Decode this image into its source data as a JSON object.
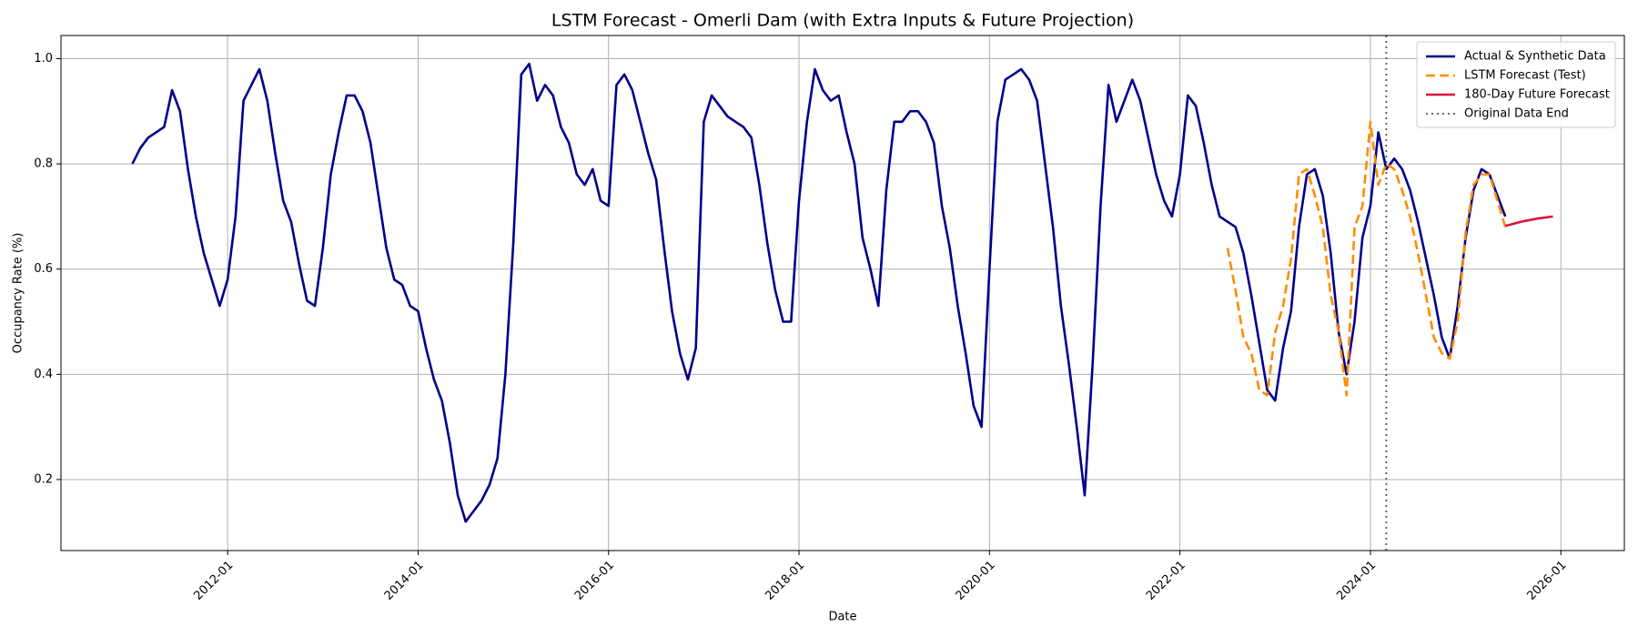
{
  "chart_data": {
    "type": "line",
    "title": "LSTM Forecast - Omerli Dam (with Extra Inputs & Future Projection)",
    "x_label": "Date",
    "y_label": "Occupancy Rate (%)",
    "xlim": [
      "2010-04",
      "2026-09"
    ],
    "xticks": [
      "2012-01",
      "2014-01",
      "2016-01",
      "2018-01",
      "2020-01",
      "2022-01",
      "2024-01",
      "2026-01"
    ],
    "ylim": [
      0.065,
      1.044
    ],
    "yticks": [
      0.2,
      0.4,
      0.6,
      0.8,
      {
        "value": 1,
        "label": "1.0"
      }
    ],
    "grid": true,
    "legend": "upper right",
    "series": [
      {
        "name": "Actual & Synthetic Data",
        "color": "#00008b",
        "linestyle": "solid",
        "x": [
          "2011-01",
          "2011-02",
          "2011-03",
          "2011-04",
          "2011-05",
          "2011-06",
          "2011-07",
          "2011-08",
          "2011-09",
          "2011-10",
          "2011-11",
          "2011-12",
          "2012-01",
          "2012-02",
          "2012-03",
          "2012-04",
          "2012-05",
          "2012-06",
          "2012-07",
          "2012-08",
          "2012-09",
          "2012-10",
          "2012-11",
          "2012-12",
          "2013-01",
          "2013-02",
          "2013-03",
          "2013-04",
          "2013-05",
          "2013-06",
          "2013-07",
          "2013-08",
          "2013-09",
          "2013-10",
          "2013-11",
          "2013-12",
          "2014-01",
          "2014-02",
          "2014-03",
          "2014-04",
          "2014-05",
          "2014-06",
          "2014-07",
          "2014-08",
          "2014-09",
          "2014-10",
          "2014-11",
          "2014-12",
          "2015-01",
          "2015-02",
          "2015-03",
          "2015-04",
          "2015-05",
          "2015-06",
          "2015-07",
          "2015-08",
          "2015-09",
          "2015-10",
          "2015-11",
          "2015-12",
          "2016-01",
          "2016-02",
          "2016-03",
          "2016-04",
          "2016-05",
          "2016-06",
          "2016-07",
          "2016-08",
          "2016-09",
          "2016-10",
          "2016-11",
          "2016-12",
          "2017-01",
          "2017-02",
          "2017-03",
          "2017-04",
          "2017-05",
          "2017-06",
          "2017-07",
          "2017-08",
          "2017-09",
          "2017-10",
          "2017-11",
          "2017-12",
          "2018-01",
          "2018-02",
          "2018-03",
          "2018-04",
          "2018-05",
          "2018-06",
          "2018-07",
          "2018-08",
          "2018-09",
          "2018-10",
          "2018-11",
          "2018-12",
          "2019-01",
          "2019-02",
          "2019-03",
          "2019-04",
          "2019-05",
          "2019-06",
          "2019-07",
          "2019-08",
          "2019-09",
          "2019-10",
          "2019-11",
          "2019-12",
          "2020-01",
          "2020-02",
          "2020-03",
          "2020-04",
          "2020-05",
          "2020-06",
          "2020-07",
          "2020-08",
          "2020-09",
          "2020-10",
          "2020-11",
          "2020-12",
          "2021-01",
          "2021-02",
          "2021-03",
          "2021-04",
          "2021-05",
          "2021-06",
          "2021-07",
          "2021-08",
          "2021-09",
          "2021-10",
          "2021-11",
          "2021-12",
          "2022-01",
          "2022-02",
          "2022-03",
          "2022-04",
          "2022-05",
          "2022-06",
          "2022-07",
          "2022-08",
          "2022-09",
          "2022-10",
          "2022-11",
          "2022-12",
          "2023-01",
          "2023-02",
          "2023-03",
          "2023-04",
          "2023-05",
          "2023-06",
          "2023-07",
          "2023-08",
          "2023-09",
          "2023-10",
          "2023-11",
          "2023-12",
          "2024-01",
          "2024-02",
          "2024-03",
          "2024-04",
          "2024-05",
          "2024-06",
          "2024-07",
          "2024-08",
          "2024-09",
          "2024-10",
          "2024-11",
          "2024-12",
          "2025-01",
          "2025-02",
          "2025-03",
          "2025-04",
          "2025-05",
          "2025-06"
        ],
        "values": [
          0.8,
          0.83,
          0.85,
          0.86,
          0.87,
          0.94,
          0.9,
          0.79,
          0.7,
          0.63,
          0.58,
          0.53,
          0.58,
          0.7,
          0.92,
          0.95,
          0.98,
          0.92,
          0.82,
          0.73,
          0.69,
          0.61,
          0.54,
          0.53,
          0.64,
          0.78,
          0.86,
          0.93,
          0.93,
          0.9,
          0.84,
          0.74,
          0.64,
          0.58,
          0.57,
          0.53,
          0.52,
          0.45,
          0.39,
          0.35,
          0.27,
          0.17,
          0.12,
          0.14,
          0.16,
          0.19,
          0.24,
          0.4,
          0.65,
          0.97,
          0.99,
          0.92,
          0.95,
          0.93,
          0.87,
          0.84,
          0.78,
          0.76,
          0.79,
          0.73,
          0.72,
          0.95,
          0.97,
          0.94,
          0.88,
          0.82,
          0.77,
          0.64,
          0.52,
          0.44,
          0.39,
          0.45,
          0.88,
          0.93,
          0.91,
          0.89,
          0.88,
          0.87,
          0.85,
          0.76,
          0.65,
          0.56,
          0.5,
          0.5,
          0.73,
          0.88,
          0.98,
          0.94,
          0.92,
          0.93,
          0.86,
          0.8,
          0.66,
          0.6,
          0.53,
          0.75,
          0.88,
          0.88,
          0.9,
          0.9,
          0.88,
          0.84,
          0.72,
          0.64,
          0.53,
          0.44,
          0.34,
          0.3,
          0.6,
          0.88,
          0.96,
          0.97,
          0.98,
          0.96,
          0.92,
          0.8,
          0.68,
          0.53,
          0.42,
          0.3,
          0.17,
          0.42,
          0.72,
          0.95,
          0.88,
          0.92,
          0.96,
          0.92,
          0.85,
          0.78,
          0.73,
          0.7,
          0.78,
          0.93,
          0.91,
          0.84,
          0.76,
          0.7,
          0.69,
          0.68,
          0.63,
          0.55,
          0.46,
          0.37,
          0.35,
          0.45,
          0.52,
          0.68,
          0.78,
          0.79,
          0.74,
          0.63,
          0.48,
          0.4,
          0.5,
          0.66,
          0.72,
          0.86,
          0.79,
          0.81,
          0.79,
          0.75,
          0.69,
          0.62,
          0.55,
          0.47,
          0.43,
          0.53,
          0.66,
          0.75,
          0.79,
          0.78,
          0.74,
          0.7
        ]
      },
      {
        "name": "LSTM Forecast (Test)",
        "color": "#ff8c00",
        "linestyle": "dashed",
        "x": [
          "2022-07",
          "2022-08",
          "2022-09",
          "2022-10",
          "2022-11",
          "2022-12",
          "2023-01",
          "2023-02",
          "2023-03",
          "2023-04",
          "2023-05",
          "2023-06",
          "2023-07",
          "2023-08",
          "2023-09",
          "2023-10",
          "2023-11",
          "2023-12",
          "2024-01",
          "2024-02",
          "2024-03",
          "2024-04",
          "2024-05",
          "2024-06",
          "2024-07",
          "2024-08",
          "2024-09",
          "2024-10",
          "2024-11",
          "2024-12",
          "2025-01",
          "2025-02",
          "2025-03",
          "2025-04",
          "2025-05",
          "2025-06"
        ],
        "values": [
          0.64,
          0.56,
          0.47,
          0.44,
          0.37,
          0.36,
          0.48,
          0.53,
          0.62,
          0.78,
          0.79,
          0.74,
          0.68,
          0.55,
          0.48,
          0.36,
          0.68,
          0.72,
          0.88,
          0.76,
          0.8,
          0.79,
          0.75,
          0.7,
          0.63,
          0.55,
          0.47,
          0.44,
          0.43,
          0.5,
          0.67,
          0.76,
          0.78,
          0.78,
          0.73,
          0.68
        ]
      },
      {
        "name": "180-Day Future Forecast",
        "color": "#dc143c",
        "linestyle": "solid",
        "x": [
          "2025-06",
          "2025-07",
          "2025-08",
          "2025-09",
          "2025-10",
          "2025-11",
          "2025-12"
        ],
        "values": [
          0.682,
          0.686,
          0.69,
          0.693,
          0.696,
          0.698,
          0.7
        ]
      }
    ],
    "vline": {
      "name": "Original Data End",
      "x": "2024-03",
      "color": "#555555",
      "linestyle": "dotted"
    }
  }
}
